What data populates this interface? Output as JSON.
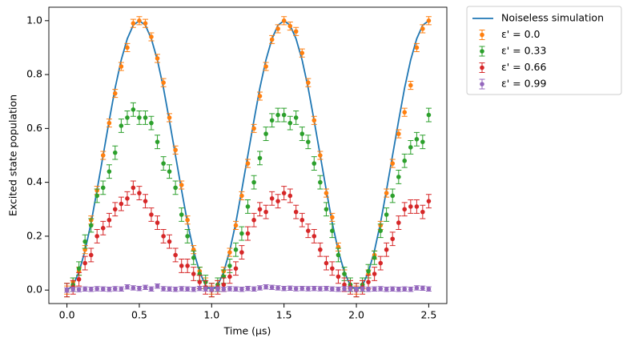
{
  "chart_data": {
    "type": "errorbar",
    "xlabel": "Time (µs)",
    "ylabel": "Excited state population",
    "xlim": [
      -0.125,
      2.625
    ],
    "ylim": [
      -0.05,
      1.05
    ],
    "xticks": [
      {
        "value": 0,
        "label": "0.0"
      },
      {
        "value": 0.5,
        "label": "0.5"
      },
      {
        "value": 1,
        "label": "1.0"
      },
      {
        "value": 1.5,
        "label": "1.5"
      },
      {
        "value": 2,
        "label": "2.0"
      },
      {
        "value": 2.5,
        "label": "2.5"
      }
    ],
    "yticks": [
      {
        "value": 0,
        "label": "0.0"
      },
      {
        "value": 0.2,
        "label": "0.2"
      },
      {
        "value": 0.4,
        "label": "0.4"
      },
      {
        "value": 0.6,
        "label": "0.6"
      },
      {
        "value": 0.8,
        "label": "0.8"
      },
      {
        "value": 1,
        "label": "1.0"
      }
    ],
    "legend": "outside upper right",
    "x": [
      0,
      0.042,
      0.083,
      0.125,
      0.167,
      0.208,
      0.25,
      0.292,
      0.333,
      0.375,
      0.417,
      0.458,
      0.5,
      0.542,
      0.583,
      0.625,
      0.667,
      0.708,
      0.75,
      0.792,
      0.833,
      0.875,
      0.917,
      0.958,
      1.0,
      1.042,
      1.083,
      1.125,
      1.167,
      1.208,
      1.25,
      1.292,
      1.333,
      1.375,
      1.417,
      1.458,
      1.5,
      1.542,
      1.583,
      1.625,
      1.667,
      1.708,
      1.75,
      1.792,
      1.833,
      1.875,
      1.917,
      1.958,
      2.0,
      2.042,
      2.083,
      2.125,
      2.167,
      2.208,
      2.25,
      2.292,
      2.333,
      2.375,
      2.417,
      2.458,
      2.5
    ],
    "series": [
      {
        "name": "Noiseless simulation",
        "kind": "line",
        "color": "#1f77b4",
        "values": [
          0,
          0.017,
          0.067,
          0.146,
          0.25,
          0.371,
          0.5,
          0.629,
          0.75,
          0.854,
          0.933,
          0.983,
          1,
          0.983,
          0.933,
          0.854,
          0.75,
          0.629,
          0.5,
          0.371,
          0.25,
          0.146,
          0.067,
          0.017,
          0,
          0.017,
          0.067,
          0.146,
          0.25,
          0.371,
          0.5,
          0.629,
          0.75,
          0.854,
          0.933,
          0.983,
          1,
          0.983,
          0.933,
          0.854,
          0.75,
          0.629,
          0.5,
          0.371,
          0.25,
          0.146,
          0.067,
          0.017,
          0,
          0.017,
          0.067,
          0.146,
          0.25,
          0.371,
          0.5,
          0.629,
          0.75,
          0.854,
          0.933,
          0.983,
          1
        ]
      },
      {
        "name": "ε' = 0.0",
        "kind": "errorbar",
        "color": "#ff7f0e",
        "error": 0.015,
        "values": [
          0.0,
          0.03,
          0.07,
          0.15,
          0.26,
          0.37,
          0.5,
          0.62,
          0.73,
          0.83,
          0.9,
          0.99,
          1.0,
          0.99,
          0.94,
          0.86,
          0.77,
          0.64,
          0.52,
          0.39,
          0.26,
          0.15,
          0.07,
          0.03,
          0.0,
          0.02,
          0.07,
          0.14,
          0.24,
          0.35,
          0.47,
          0.6,
          0.72,
          0.83,
          0.93,
          0.97,
          1.0,
          0.98,
          0.96,
          0.88,
          0.77,
          0.63,
          0.5,
          0.36,
          0.27,
          0.16,
          0.06,
          0.02,
          0.0,
          0.02,
          0.06,
          0.13,
          0.24,
          0.36,
          0.47,
          0.58,
          0.66,
          0.76,
          0.9,
          0.97,
          1.0
        ]
      },
      {
        "name": "ε' = 0.33",
        "kind": "errorbar",
        "color": "#2ca02c",
        "error": 0.025,
        "values": [
          0.0,
          0.02,
          0.08,
          0.18,
          0.24,
          0.35,
          0.38,
          0.44,
          0.51,
          0.61,
          0.64,
          0.67,
          0.64,
          0.64,
          0.62,
          0.55,
          0.47,
          0.44,
          0.38,
          0.28,
          0.2,
          0.12,
          0.06,
          0.03,
          0.0,
          0.02,
          0.05,
          0.09,
          0.15,
          0.21,
          0.31,
          0.4,
          0.49,
          0.58,
          0.63,
          0.65,
          0.65,
          0.62,
          0.64,
          0.58,
          0.55,
          0.47,
          0.4,
          0.3,
          0.22,
          0.13,
          0.06,
          0.02,
          0.0,
          0.02,
          0.07,
          0.12,
          0.22,
          0.28,
          0.35,
          0.42,
          0.48,
          0.53,
          0.56,
          0.55,
          0.65
        ]
      },
      {
        "name": "ε' = 0.66",
        "kind": "errorbar",
        "color": "#d62728",
        "error": 0.025,
        "values": [
          0.0,
          0.01,
          0.04,
          0.1,
          0.13,
          0.2,
          0.23,
          0.26,
          0.3,
          0.32,
          0.34,
          0.38,
          0.36,
          0.33,
          0.28,
          0.25,
          0.2,
          0.18,
          0.13,
          0.09,
          0.09,
          0.06,
          0.03,
          0.01,
          0.0,
          0.01,
          0.02,
          0.05,
          0.08,
          0.14,
          0.21,
          0.26,
          0.3,
          0.29,
          0.34,
          0.33,
          0.36,
          0.35,
          0.29,
          0.26,
          0.22,
          0.2,
          0.15,
          0.1,
          0.08,
          0.05,
          0.02,
          0.01,
          0.0,
          0.01,
          0.03,
          0.06,
          0.1,
          0.15,
          0.19,
          0.25,
          0.3,
          0.31,
          0.31,
          0.29,
          0.33
        ]
      },
      {
        "name": "ε' = 0.99",
        "kind": "errorbar",
        "color": "#9467bd",
        "error": 0.008,
        "values": [
          0.0,
          0.003,
          0.002,
          0.004,
          0.003,
          0.005,
          0.004,
          0.003,
          0.005,
          0.004,
          0.012,
          0.008,
          0.006,
          0.01,
          0.004,
          0.015,
          0.005,
          0.004,
          0.003,
          0.005,
          0.004,
          0.003,
          0.006,
          0.004,
          0.003,
          0.004,
          0.003,
          0.005,
          0.004,
          0.003,
          0.006,
          0.004,
          0.008,
          0.012,
          0.01,
          0.008,
          0.006,
          0.007,
          0.005,
          0.006,
          0.005,
          0.006,
          0.005,
          0.006,
          0.004,
          0.003,
          0.005,
          0.004,
          0.003,
          0.004,
          0.003,
          0.004,
          0.005,
          0.003,
          0.004,
          0.003,
          0.004,
          0.003,
          0.008,
          0.007,
          0.004
        ]
      }
    ]
  }
}
